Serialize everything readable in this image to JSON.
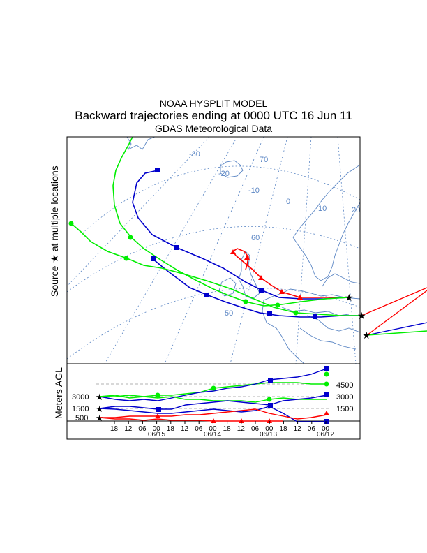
{
  "titles": {
    "line1": "NOAA HYSPLIT MODEL",
    "line2": "Backward trajectories ending at 0000 UTC 16 Jun 11",
    "line3": "GDAS Meteorological Data"
  },
  "map": {
    "source_label": "Source",
    "source_label_suffix": "at multiple locations",
    "source_symbol": "★",
    "grid_labels": [
      "-30",
      "-20",
      "-10",
      "0",
      "10",
      "20",
      "70",
      "60",
      "50"
    ]
  },
  "profile": {
    "ylabel": "Meters AGL",
    "left_levels": [
      "3000",
      "1500",
      "500"
    ],
    "right_levels": [
      "4500",
      "3000",
      "1500"
    ],
    "hour_ticks": [
      "18",
      "12",
      "06",
      "00",
      "18",
      "12",
      "06",
      "00",
      "18",
      "12",
      "06",
      "00",
      "18",
      "12",
      "06",
      "00"
    ],
    "date_labels": [
      "06/15",
      "06/14",
      "06/13",
      "06/12"
    ]
  },
  "colors": {
    "red": "#ff0000",
    "blue": "#0000cc",
    "green": "#00ee00",
    "grid": "#5b86c4"
  }
}
